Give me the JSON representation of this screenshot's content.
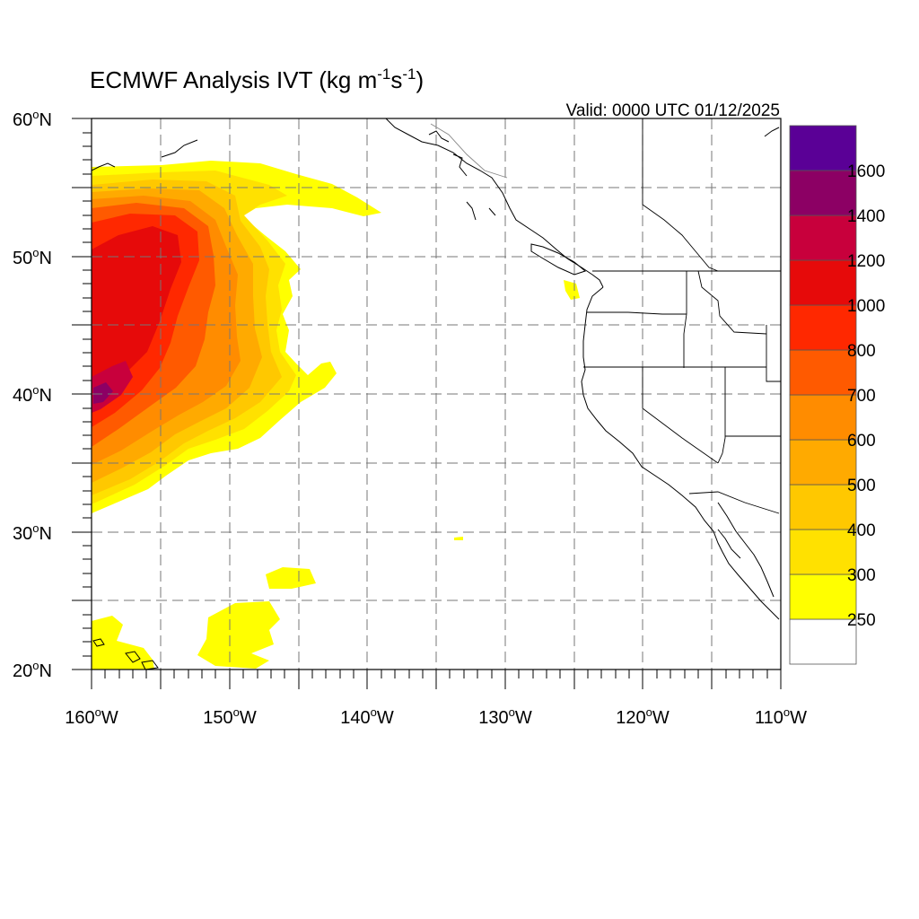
{
  "title": {
    "prefix": "ECMWF Analysis IVT (kg m",
    "exp1": "-1",
    "mid": "s",
    "exp2": "-1",
    "suffix": ")"
  },
  "valid_label": "Valid: 0000 UTC 01/12/2025",
  "map": {
    "lon_range": [
      -160,
      -110
    ],
    "lat_range": [
      20,
      60
    ],
    "gridlines": "dashed, every 5 degrees",
    "lon_ticks": [
      {
        "value": -160,
        "label": "160"
      },
      {
        "value": -150,
        "label": "150"
      },
      {
        "value": -140,
        "label": "140"
      },
      {
        "value": -130,
        "label": "130"
      },
      {
        "value": -120,
        "label": "120"
      },
      {
        "value": -110,
        "label": "110"
      }
    ],
    "lon_suffix": "W",
    "lat_ticks": [
      {
        "value": 20,
        "label": "20"
      },
      {
        "value": 30,
        "label": "30"
      },
      {
        "value": 40,
        "label": "40"
      },
      {
        "value": 50,
        "label": "50"
      },
      {
        "value": 60,
        "label": "60"
      }
    ],
    "lat_suffix": "N",
    "degree_symbol": "o"
  },
  "colorbar": {
    "levels": [
      "250",
      "300",
      "400",
      "500",
      "600",
      "700",
      "800",
      "1000",
      "1200",
      "1400",
      "1600"
    ],
    "colors": [
      "#ffffff",
      "#ffff00",
      "#ffe100",
      "#ffc800",
      "#ffaa00",
      "#ff8c00",
      "#ff5a00",
      "#ff2800",
      "#e60a0a",
      "#c8003c",
      "#8c0064",
      "#5a0096"
    ],
    "label_levels": [
      "250",
      "300",
      "400",
      "500",
      "600",
      "700",
      "800",
      "1000",
      "1200",
      "1400",
      "1600"
    ]
  }
}
